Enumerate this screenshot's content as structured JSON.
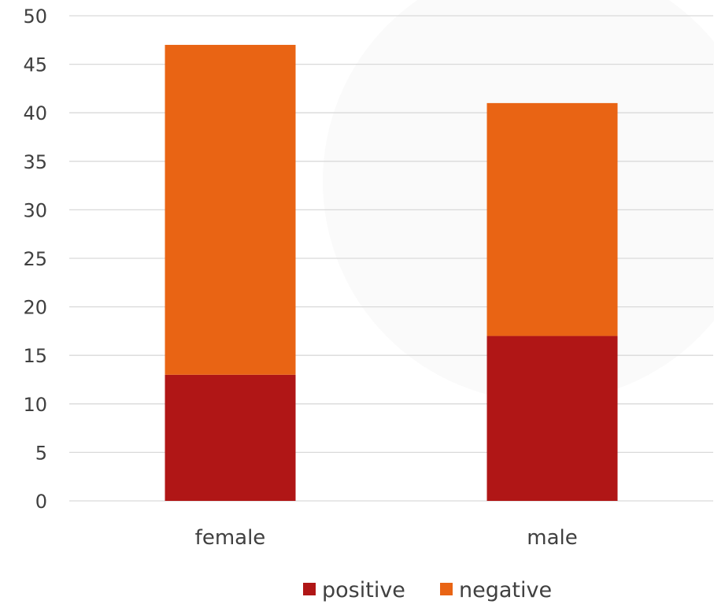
{
  "chart_data": {
    "type": "bar",
    "stacked": true,
    "categories": [
      "female",
      "male"
    ],
    "series": [
      {
        "name": "positive",
        "values": [
          13,
          17
        ],
        "color": "#b01616"
      },
      {
        "name": "negative",
        "values": [
          34,
          24
        ],
        "color": "#e96414"
      }
    ],
    "title": "",
    "xlabel": "",
    "ylabel": "",
    "ylim": [
      0,
      50
    ],
    "yticks": [
      0,
      5,
      10,
      15,
      20,
      25,
      30,
      35,
      40,
      45,
      50
    ],
    "grid": true,
    "legend_position": "bottom"
  }
}
